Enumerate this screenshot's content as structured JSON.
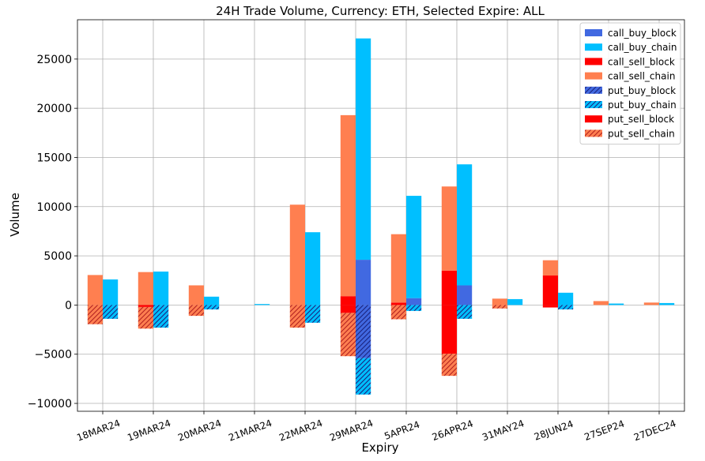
{
  "chart_data": {
    "type": "bar",
    "title": "24H Trade Volume, Currency: ETH, Selected Expire: ALL",
    "xlabel": "Expiry",
    "ylabel": "Volume",
    "ylim": [
      -10800,
      29000
    ],
    "yticks": [
      -10000,
      -5000,
      0,
      5000,
      10000,
      15000,
      20000,
      25000
    ],
    "ytick_labels": [
      "−10000",
      "−5000",
      "0",
      "5000",
      "10000",
      "15000",
      "20000",
      "25000"
    ],
    "grid": true,
    "legend_position": "top-right",
    "categories": [
      "18MAR24",
      "19MAR24",
      "20MAR24",
      "21MAR24",
      "22MAR24",
      "29MAR24",
      "5APR24",
      "26APR24",
      "31MAY24",
      "28JUN24",
      "27SEP24",
      "27DEC24"
    ],
    "series": [
      {
        "name": "call_buy_block",
        "group": "buy",
        "direction": "call",
        "color": "#4169e1",
        "hatch": false,
        "values": [
          0,
          0,
          0,
          0,
          0,
          4600,
          700,
          2000,
          0,
          0,
          0,
          0
        ]
      },
      {
        "name": "call_buy_chain",
        "group": "buy",
        "direction": "call",
        "color": "#00bfff",
        "hatch": false,
        "values": [
          2600,
          3400,
          850,
          100,
          7400,
          22500,
          10400,
          12300,
          600,
          1250,
          150,
          200
        ]
      },
      {
        "name": "call_sell_block",
        "group": "sell",
        "direction": "call",
        "color": "#ff0000",
        "hatch": false,
        "values": [
          0,
          0,
          0,
          0,
          0,
          900,
          250,
          3500,
          0,
          3000,
          0,
          0
        ]
      },
      {
        "name": "call_sell_chain",
        "group": "sell",
        "direction": "call",
        "color": "#ff7f50",
        "hatch": false,
        "values": [
          3050,
          3350,
          2000,
          0,
          10200,
          18400,
          6950,
          8550,
          650,
          1550,
          400,
          250
        ]
      },
      {
        "name": "put_buy_block",
        "group": "buy",
        "direction": "put",
        "color": "#4169e1",
        "hatch": true,
        "values": [
          0,
          0,
          0,
          0,
          0,
          5400,
          0,
          0,
          0,
          0,
          0,
          0
        ]
      },
      {
        "name": "put_buy_chain",
        "group": "buy",
        "direction": "put",
        "color": "#00bfff",
        "hatch": true,
        "values": [
          1400,
          2300,
          450,
          0,
          1800,
          3700,
          600,
          1400,
          0,
          450,
          0,
          0
        ]
      },
      {
        "name": "put_sell_block",
        "group": "sell",
        "direction": "put",
        "color": "#ff0000",
        "hatch": false,
        "values": [
          0,
          200,
          0,
          0,
          0,
          800,
          0,
          4950,
          0,
          250,
          0,
          0
        ]
      },
      {
        "name": "put_sell_chain",
        "group": "sell",
        "direction": "put",
        "color": "#ff7f50",
        "hatch": true,
        "values": [
          1950,
          2200,
          1100,
          0,
          2300,
          4400,
          1450,
          2250,
          350,
          0,
          0,
          0
        ]
      }
    ]
  }
}
